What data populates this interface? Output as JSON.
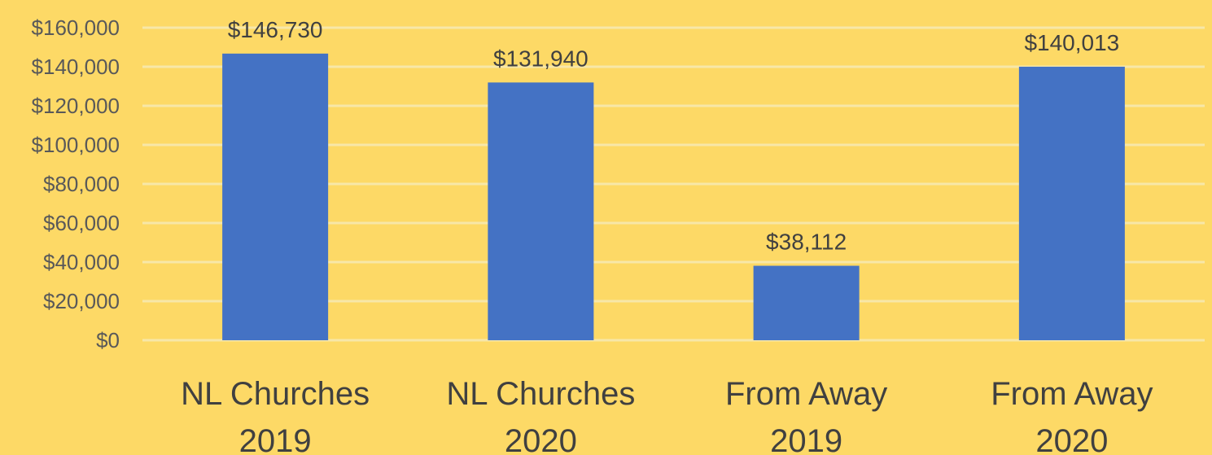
{
  "chart_data": {
    "type": "bar",
    "categories": [
      [
        "NL Churches",
        "2019"
      ],
      [
        "NL Churches",
        "2020"
      ],
      [
        "From Away",
        "2019"
      ],
      [
        "From Away",
        "2020"
      ]
    ],
    "values": [
      146730,
      131940,
      38112,
      140013
    ],
    "data_labels": [
      "$146,730",
      "$131,940",
      "$38,112",
      "$140,013"
    ],
    "ylim": [
      0,
      160000
    ],
    "yticks": [
      0,
      20000,
      40000,
      60000,
      80000,
      100000,
      120000,
      140000,
      160000
    ],
    "ytick_labels": [
      "$0",
      "$20,000",
      "$40,000",
      "$60,000",
      "$80,000",
      "$100,000",
      "$120,000",
      "$140,000",
      "$160,000"
    ],
    "title": "",
    "xlabel": "",
    "ylabel": "",
    "grid": true,
    "legend": false,
    "colors": {
      "background": "#FDD966",
      "bar": "#4472C4",
      "gridline": "#F7E7A8",
      "text": "#404040"
    }
  }
}
